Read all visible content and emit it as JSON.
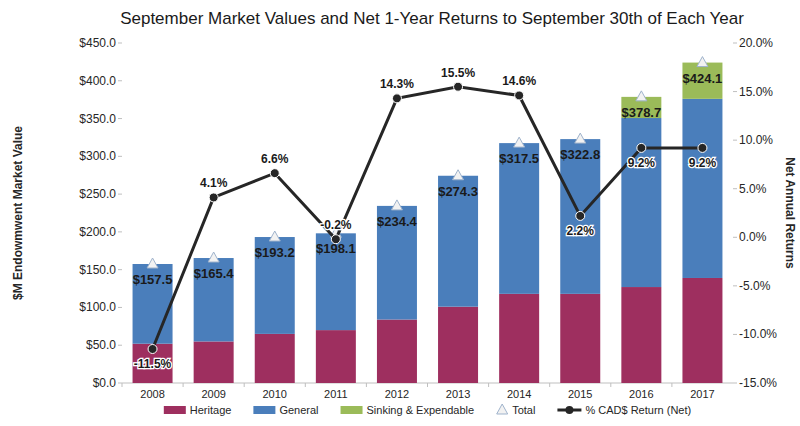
{
  "chart_data": {
    "type": "bar",
    "stacked": true,
    "title": "September Market Values and Net 1-Year Returns to September 30th of Each Year",
    "y_label": "$M Endowmwent Market Value",
    "y2_label": "Net Annual Returns",
    "categories": [
      "2008",
      "2009",
      "2010",
      "2011",
      "2012",
      "2013",
      "2014",
      "2015",
      "2016",
      "2017"
    ],
    "ylim": [
      0,
      450
    ],
    "yticks": [
      {
        "value": 0,
        "label": "$0.0"
      },
      {
        "value": 50,
        "label": "$50.0"
      },
      {
        "value": 100,
        "label": "$100.0"
      },
      {
        "value": 150,
        "label": "$150.0"
      },
      {
        "value": 200,
        "label": "$200.0"
      },
      {
        "value": 250,
        "label": "$250.0"
      },
      {
        "value": 300,
        "label": "$300.0"
      },
      {
        "value": 350,
        "label": "$350.0"
      },
      {
        "value": 400,
        "label": "$400.0"
      },
      {
        "value": 450,
        "label": "$450.0"
      }
    ],
    "y2lim": [
      -15,
      20
    ],
    "y2ticks": [
      {
        "value": -15,
        "label": "-15.0%"
      },
      {
        "value": -10,
        "label": "-10.0%"
      },
      {
        "value": -5,
        "label": "-5.0%"
      },
      {
        "value": 0,
        "label": "0.0%"
      },
      {
        "value": 5,
        "label": "5.0%"
      },
      {
        "value": 10,
        "label": "10.0%"
      },
      {
        "value": 15,
        "label": "15.0%"
      },
      {
        "value": 20,
        "label": "20.0%"
      }
    ],
    "grid": false,
    "legend": "bottom",
    "series": [
      {
        "name": "Heritage",
        "type": "bar",
        "color": "#9e2f5f",
        "values": [
          52,
          55,
          65,
          70,
          84,
          101,
          118,
          118,
          127,
          139
        ]
      },
      {
        "name": "General",
        "type": "bar",
        "color": "#4a7ebb",
        "values": [
          105.5,
          110.4,
          128.2,
          128.1,
          150.4,
          173.3,
          199.5,
          204.8,
          223.7,
          237.1
        ]
      },
      {
        "name": "Sinking & Expendable",
        "type": "bar",
        "color": "#9bbb59",
        "values": [
          null,
          null,
          null,
          null,
          null,
          null,
          null,
          null,
          28,
          48
        ]
      },
      {
        "name": "Total",
        "type": "scatter",
        "marker": "triangle",
        "color": "#9fb3cc",
        "data_labels": true,
        "values": [
          157.5,
          165.4,
          193.2,
          198.1,
          234.4,
          274.3,
          317.5,
          322.8,
          378.7,
          424.1
        ],
        "value_labels": [
          "$157.5",
          "$165.4",
          "$193.2",
          "$198.1",
          "$234.4",
          "$274.3",
          "$317.5",
          "$322.8",
          "$378.7",
          "$424.1"
        ]
      },
      {
        "name": "% CAD$ Return (Net)",
        "type": "line",
        "marker": "circle",
        "line_style": "solid",
        "color": "#262626",
        "axis": "y2",
        "data_labels": true,
        "values": [
          -11.5,
          4.1,
          6.6,
          -0.2,
          14.3,
          15.5,
          14.6,
          2.2,
          9.2,
          9.2
        ],
        "value_labels": [
          "-11.5%",
          "4.1%",
          "6.6%",
          "-0.2%",
          "14.3%",
          "15.5%",
          "14.6%",
          "2.2%",
          "9.2%",
          "9.2%"
        ]
      }
    ]
  }
}
